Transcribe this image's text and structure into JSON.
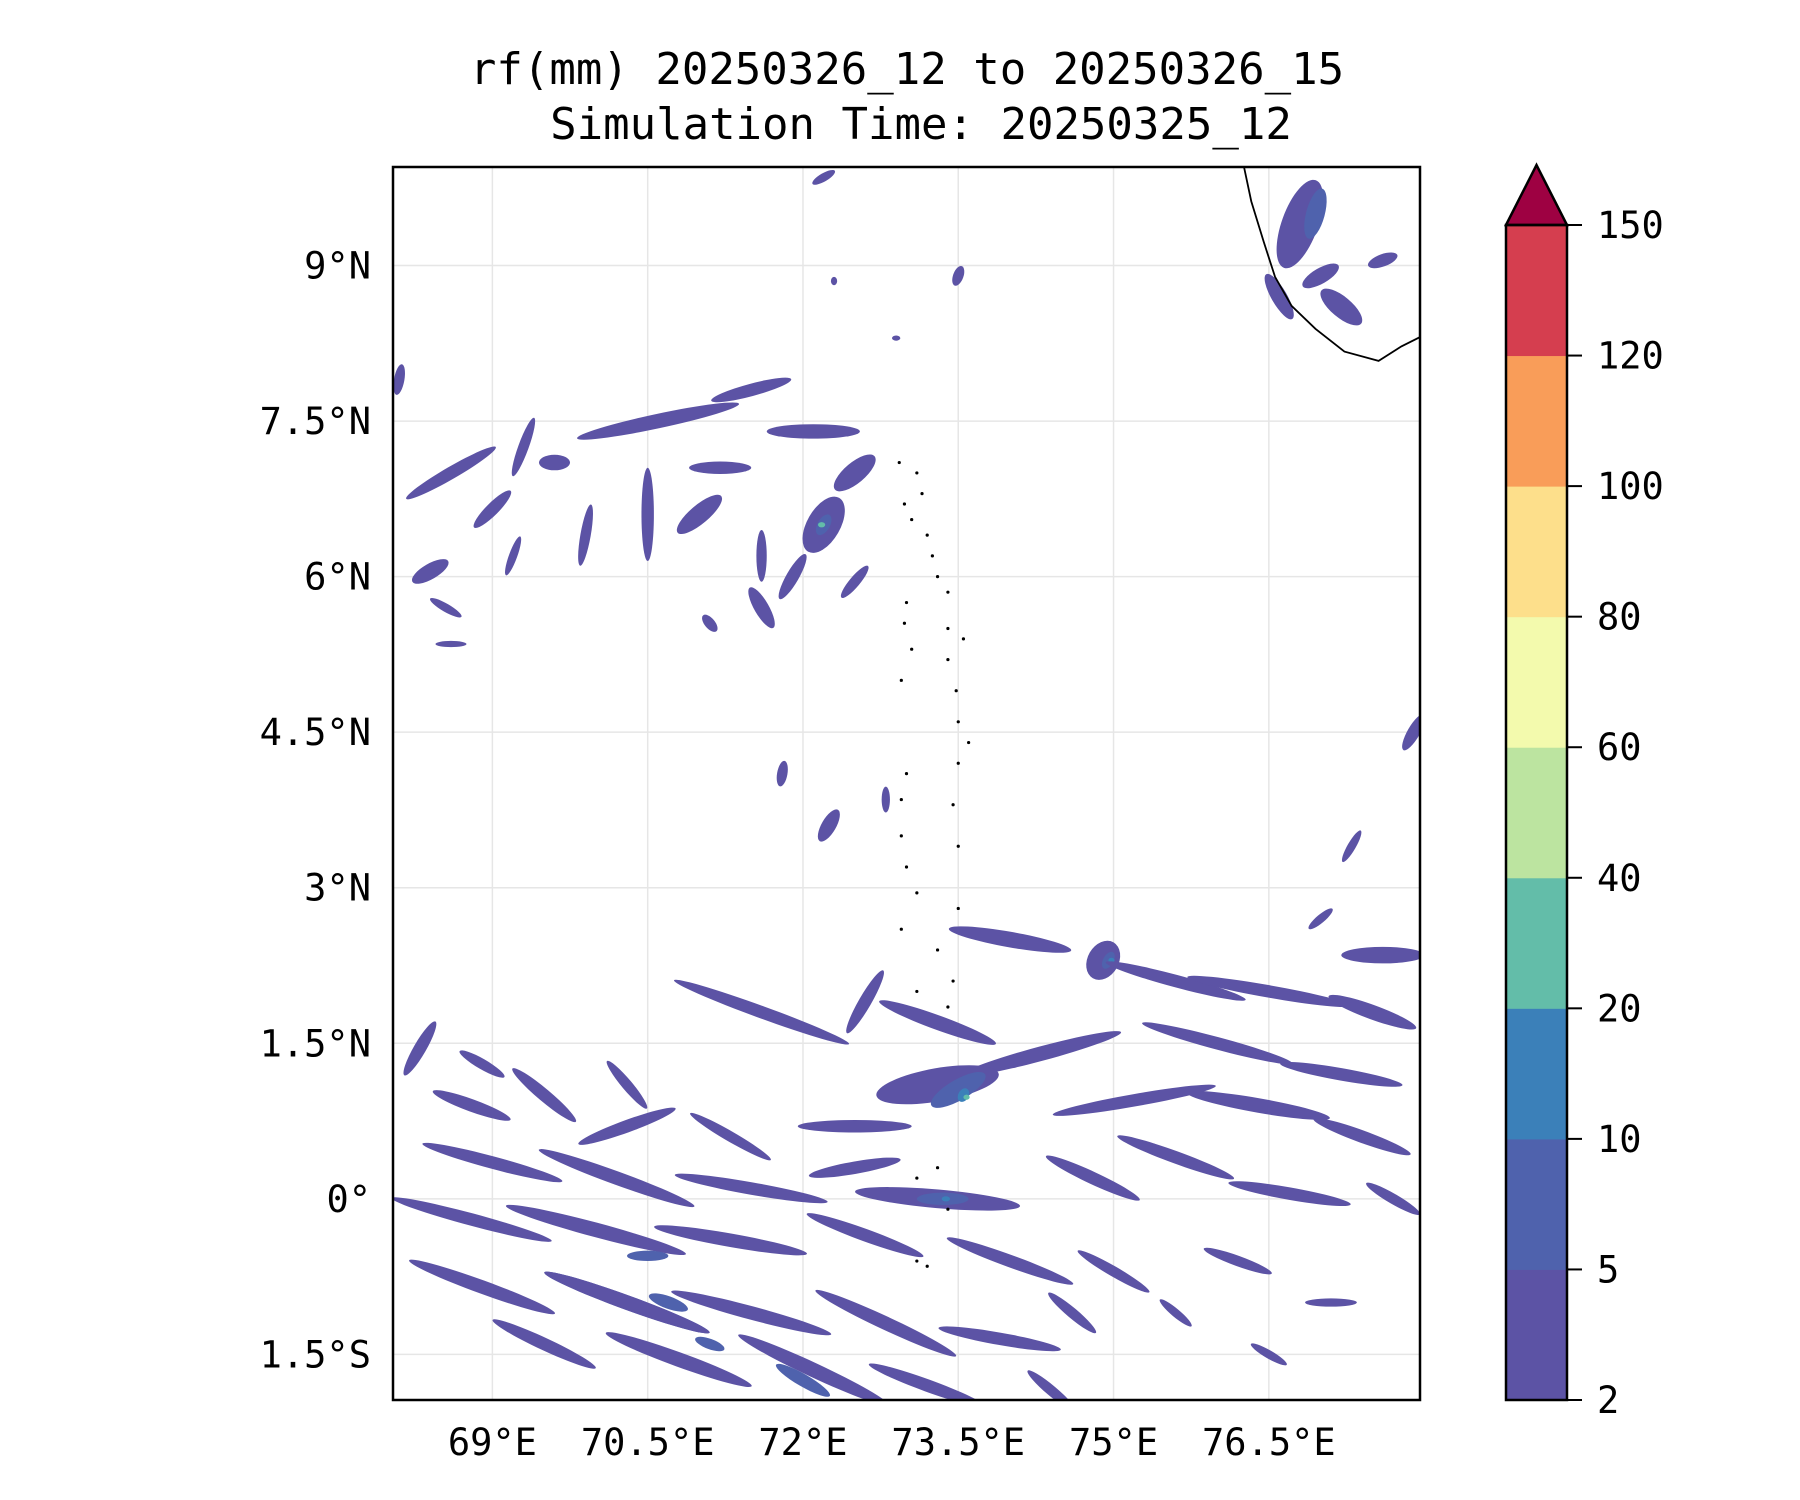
{
  "chart_data": {
    "type": "heatmap",
    "title": "rf(mm) 20250326_12 to 20250326_15",
    "subtitle": "Simulation Time: 20250325_12",
    "xlabel": "",
    "ylabel": "",
    "xlim": [
      68.04,
      77.96
    ],
    "ylim": [
      -1.94,
      9.95
    ],
    "grid": true,
    "x_ticks": [
      69,
      70.5,
      72,
      73.5,
      75,
      76.5
    ],
    "x_tick_labels": [
      "69°E",
      "70.5°E",
      "72°E",
      "73.5°E",
      "75°E",
      "76.5°E"
    ],
    "y_ticks": [
      9,
      7.5,
      6,
      4.5,
      3,
      1.5,
      0,
      -1.5
    ],
    "y_tick_labels": [
      "9°N",
      "7.5°N",
      "6°N",
      "4.5°N",
      "3°N",
      "1.5°N",
      "0°",
      "1.5°S"
    ],
    "colorbar": {
      "levels": [
        2,
        5,
        10,
        20,
        40,
        60,
        80,
        100,
        120,
        150
      ],
      "tick_labels": [
        "2",
        "5",
        "10",
        "20",
        "40",
        "60",
        "80",
        "100",
        "120",
        "150"
      ],
      "colors": [
        "#5c53a5",
        "#4f62ad",
        "#3b80b9",
        "#63bda9",
        "#bce4a0",
        "#f3faad",
        "#fddf8b",
        "#f99d59",
        "#d53e4f"
      ],
      "extend_max_color": "#9e0142",
      "extend": "max"
    },
    "coastline": [
      [
        76.26,
        9.95
      ],
      [
        76.33,
        9.62
      ],
      [
        76.45,
        9.23
      ],
      [
        76.56,
        8.89
      ],
      [
        76.72,
        8.61
      ],
      [
        76.95,
        8.39
      ],
      [
        77.23,
        8.17
      ],
      [
        77.56,
        8.08
      ],
      [
        77.78,
        8.22
      ],
      [
        77.96,
        8.31
      ]
    ],
    "islands": [
      [
        72.93,
        7.1
      ],
      [
        73.1,
        7.0
      ],
      [
        73.15,
        6.8
      ],
      [
        72.98,
        6.7
      ],
      [
        73.05,
        6.55
      ],
      [
        73.2,
        6.4
      ],
      [
        73.25,
        6.2
      ],
      [
        73.3,
        6.0
      ],
      [
        73.4,
        5.85
      ],
      [
        73.0,
        5.75
      ],
      [
        72.98,
        5.55
      ],
      [
        73.4,
        5.5
      ],
      [
        73.55,
        5.4
      ],
      [
        73.05,
        5.3
      ],
      [
        73.4,
        5.2
      ],
      [
        72.95,
        5.0
      ],
      [
        73.48,
        4.9
      ],
      [
        73.5,
        4.6
      ],
      [
        73.6,
        4.4
      ],
      [
        73.5,
        4.2
      ],
      [
        73.0,
        4.1
      ],
      [
        72.95,
        3.85
      ],
      [
        73.45,
        3.8
      ],
      [
        72.95,
        3.5
      ],
      [
        73.5,
        3.4
      ],
      [
        73.0,
        3.2
      ],
      [
        73.1,
        2.95
      ],
      [
        73.5,
        2.8
      ],
      [
        72.95,
        2.6
      ],
      [
        73.3,
        2.4
      ],
      [
        73.45,
        2.1
      ],
      [
        73.1,
        2.0
      ],
      [
        73.4,
        1.85
      ],
      [
        73.3,
        0.3
      ],
      [
        73.1,
        0.2
      ],
      [
        73.4,
        -0.1
      ],
      [
        73.1,
        -0.6
      ],
      [
        73.2,
        -0.65
      ]
    ],
    "precip_features": [
      [
        72.2,
        9.85,
        0.25,
        0.08,
        30,
        1
      ],
      [
        73.5,
        8.9,
        0.2,
        0.1,
        70,
        1
      ],
      [
        72.3,
        8.85,
        0.08,
        0.06,
        90,
        1
      ],
      [
        72.9,
        8.3,
        0.08,
        0.05,
        0,
        1
      ],
      [
        76.8,
        9.4,
        0.9,
        0.35,
        70,
        1
      ],
      [
        76.95,
        9.5,
        0.5,
        0.18,
        75,
        2
      ],
      [
        77.2,
        8.6,
        0.5,
        0.2,
        -40,
        1
      ],
      [
        77.0,
        8.9,
        0.4,
        0.15,
        30,
        1
      ],
      [
        77.6,
        9.05,
        0.3,
        0.12,
        20,
        1
      ],
      [
        76.6,
        8.7,
        0.5,
        0.15,
        -60,
        1
      ],
      [
        68.1,
        7.9,
        0.3,
        0.1,
        80,
        1
      ],
      [
        68.6,
        7.0,
        1.0,
        0.12,
        30,
        1
      ],
      [
        69.3,
        7.25,
        0.6,
        0.1,
        70,
        1
      ],
      [
        70.6,
        7.5,
        1.6,
        0.14,
        12,
        1
      ],
      [
        71.5,
        7.8,
        0.8,
        0.12,
        15,
        1
      ],
      [
        72.1,
        7.4,
        0.9,
        0.14,
        0,
        1
      ],
      [
        71.2,
        7.05,
        0.6,
        0.12,
        0,
        1
      ],
      [
        72.5,
        7.0,
        0.5,
        0.2,
        40,
        1
      ],
      [
        72.2,
        6.5,
        0.6,
        0.32,
        60,
        1
      ],
      [
        72.2,
        6.5,
        0.22,
        0.12,
        60,
        2
      ],
      [
        72.18,
        6.5,
        0.07,
        0.05,
        0,
        4
      ],
      [
        70.5,
        6.6,
        0.9,
        0.12,
        90,
        1
      ],
      [
        71.0,
        6.6,
        0.55,
        0.18,
        40,
        1
      ],
      [
        71.9,
        6.0,
        0.5,
        0.12,
        60,
        1
      ],
      [
        71.6,
        6.2,
        0.5,
        0.1,
        90,
        1
      ],
      [
        69.0,
        6.65,
        0.5,
        0.12,
        45,
        1
      ],
      [
        68.4,
        6.05,
        0.4,
        0.15,
        30,
        1
      ],
      [
        68.55,
        5.7,
        0.35,
        0.08,
        -30,
        1
      ],
      [
        71.6,
        5.7,
        0.45,
        0.14,
        -60,
        1
      ],
      [
        69.9,
        6.4,
        0.6,
        0.1,
        80,
        1
      ],
      [
        72.5,
        5.95,
        0.4,
        0.1,
        50,
        1
      ],
      [
        69.6,
        7.1,
        0.3,
        0.15,
        0,
        1
      ],
      [
        69.2,
        6.2,
        0.4,
        0.08,
        70,
        1
      ],
      [
        71.1,
        5.55,
        0.2,
        0.1,
        -50,
        1
      ],
      [
        68.6,
        5.35,
        0.3,
        0.06,
        0,
        1
      ],
      [
        71.8,
        4.1,
        0.25,
        0.1,
        80,
        1
      ],
      [
        72.25,
        3.6,
        0.35,
        0.14,
        60,
        1
      ],
      [
        72.8,
        3.85,
        0.25,
        0.08,
        90,
        1
      ],
      [
        77.9,
        4.5,
        0.4,
        0.12,
        60,
        1
      ],
      [
        77.3,
        3.4,
        0.35,
        0.08,
        60,
        1
      ],
      [
        77.0,
        2.7,
        0.3,
        0.08,
        40,
        1
      ],
      [
        74.0,
        2.5,
        1.2,
        0.15,
        -10,
        1
      ],
      [
        74.9,
        2.3,
        0.4,
        0.3,
        60,
        1
      ],
      [
        74.95,
        2.3,
        0.18,
        0.1,
        60,
        2
      ],
      [
        74.98,
        2.3,
        0.06,
        0.05,
        0,
        3
      ],
      [
        75.6,
        2.1,
        1.4,
        0.12,
        -15,
        1
      ],
      [
        76.5,
        2.0,
        1.6,
        0.12,
        -10,
        1
      ],
      [
        77.6,
        2.35,
        0.8,
        0.16,
        0,
        1
      ],
      [
        77.5,
        1.8,
        0.9,
        0.14,
        -20,
        1
      ],
      [
        76.0,
        1.5,
        1.5,
        0.12,
        -15,
        1
      ],
      [
        77.2,
        1.2,
        1.2,
        0.12,
        -10,
        1
      ],
      [
        71.6,
        1.8,
        1.8,
        0.12,
        -20,
        1
      ],
      [
        72.6,
        1.9,
        0.7,
        0.12,
        60,
        1
      ],
      [
        73.3,
        1.7,
        1.2,
        0.14,
        -20,
        1
      ],
      [
        74.3,
        1.4,
        1.6,
        0.14,
        15,
        1
      ],
      [
        73.3,
        1.1,
        1.2,
        0.32,
        10,
        1
      ],
      [
        73.5,
        1.05,
        0.6,
        0.2,
        30,
        2
      ],
      [
        73.55,
        1.0,
        0.14,
        0.1,
        60,
        3
      ],
      [
        73.58,
        0.98,
        0.06,
        0.05,
        0,
        4
      ],
      [
        75.2,
        0.95,
        1.6,
        0.12,
        10,
        1
      ],
      [
        76.4,
        0.9,
        1.4,
        0.14,
        -10,
        1
      ],
      [
        77.4,
        0.6,
        1.0,
        0.12,
        -20,
        1
      ],
      [
        75.6,
        0.4,
        1.2,
        0.12,
        -20,
        1
      ],
      [
        74.8,
        0.2,
        1.0,
        0.12,
        -25,
        1
      ],
      [
        76.7,
        0.05,
        1.2,
        0.12,
        -10,
        1
      ],
      [
        77.7,
        0.0,
        0.6,
        0.1,
        -30,
        1
      ],
      [
        68.3,
        1.45,
        0.6,
        0.12,
        60,
        1
      ],
      [
        68.9,
        1.3,
        0.5,
        0.1,
        -30,
        1
      ],
      [
        69.5,
        1.0,
        0.8,
        0.12,
        -40,
        1
      ],
      [
        70.3,
        1.1,
        0.6,
        0.1,
        -50,
        1
      ],
      [
        68.8,
        0.9,
        0.8,
        0.12,
        -20,
        1
      ],
      [
        70.3,
        0.7,
        1.0,
        0.12,
        20,
        1
      ],
      [
        71.3,
        0.6,
        0.9,
        0.1,
        -30,
        1
      ],
      [
        72.5,
        0.7,
        1.1,
        0.12,
        0,
        1
      ],
      [
        69.0,
        0.35,
        1.4,
        0.12,
        -15,
        1
      ],
      [
        70.2,
        0.2,
        1.6,
        0.13,
        -20,
        1
      ],
      [
        71.5,
        0.1,
        1.5,
        0.12,
        -10,
        1
      ],
      [
        72.5,
        0.3,
        0.9,
        0.12,
        10,
        1
      ],
      [
        73.3,
        0.0,
        1.6,
        0.18,
        -5,
        1
      ],
      [
        73.35,
        0.0,
        0.5,
        0.12,
        0,
        2
      ],
      [
        73.38,
        0.0,
        0.08,
        0.05,
        0,
        3
      ],
      [
        68.8,
        -0.2,
        1.6,
        0.12,
        -15,
        1
      ],
      [
        70.0,
        -0.3,
        1.8,
        0.14,
        -15,
        1
      ],
      [
        71.3,
        -0.4,
        1.5,
        0.13,
        -10,
        1
      ],
      [
        72.6,
        -0.35,
        1.2,
        0.12,
        -20,
        1
      ],
      [
        74.0,
        -0.6,
        1.3,
        0.12,
        -20,
        1
      ],
      [
        75.0,
        -0.7,
        0.8,
        0.1,
        -30,
        1
      ],
      [
        76.2,
        -0.6,
        0.7,
        0.1,
        -20,
        1
      ],
      [
        77.1,
        -1.0,
        0.5,
        0.08,
        0,
        1
      ],
      [
        76.5,
        -1.5,
        0.4,
        0.08,
        -30,
        1
      ],
      [
        75.6,
        -1.1,
        0.4,
        0.08,
        -40,
        1
      ],
      [
        68.9,
        -0.85,
        1.5,
        0.13,
        -20,
        1
      ],
      [
        70.3,
        -1.0,
        1.7,
        0.14,
        -20,
        2
      ],
      [
        70.3,
        -1.0,
        1.7,
        0.14,
        -20,
        1
      ],
      [
        71.5,
        -1.1,
        1.6,
        0.13,
        -15,
        1
      ],
      [
        72.8,
        -1.2,
        1.5,
        0.13,
        -25,
        1
      ],
      [
        73.9,
        -1.35,
        1.2,
        0.12,
        -10,
        1
      ],
      [
        74.6,
        -1.1,
        0.6,
        0.1,
        -40,
        1
      ],
      [
        69.5,
        -1.4,
        1.1,
        0.12,
        -25,
        1
      ],
      [
        70.8,
        -1.55,
        1.5,
        0.14,
        -20,
        1
      ],
      [
        72.1,
        -1.65,
        1.6,
        0.14,
        -25,
        1
      ],
      [
        72.0,
        -1.75,
        0.6,
        0.12,
        -30,
        2
      ],
      [
        73.2,
        -1.8,
        1.2,
        0.12,
        -20,
        1
      ],
      [
        74.4,
        -1.85,
        0.6,
        0.1,
        -40,
        1
      ],
      [
        70.5,
        -0.55,
        0.4,
        0.1,
        0,
        2
      ],
      [
        70.7,
        -1.0,
        0.4,
        0.12,
        -20,
        2
      ],
      [
        71.1,
        -1.4,
        0.3,
        0.1,
        -20,
        2
      ]
    ]
  }
}
